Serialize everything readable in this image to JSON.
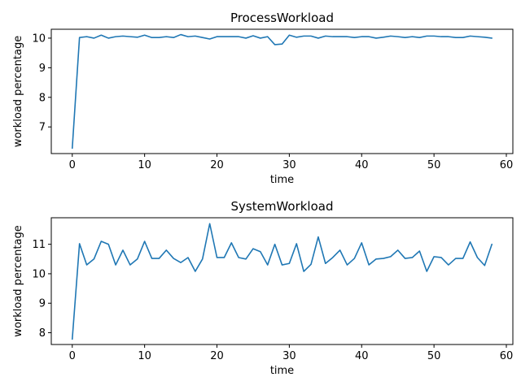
{
  "chart_data": [
    {
      "type": "line",
      "title": "ProcessWorkload",
      "xlabel": "time",
      "ylabel": "workload percentage",
      "xlim": [
        -2.9,
        60.9
      ],
      "ylim": [
        6.1,
        10.3
      ],
      "xticks": [
        0,
        10,
        20,
        30,
        40,
        50,
        60
      ],
      "yticks": [
        7,
        8,
        9,
        10
      ],
      "grid": false,
      "colors": {
        "line": "#1f77b4"
      },
      "series": [
        {
          "x": [
            0,
            1,
            2,
            3,
            4,
            5,
            6,
            7,
            8,
            9,
            10,
            11,
            12,
            13,
            14,
            15,
            16,
            17,
            18,
            19,
            20,
            21,
            22,
            23,
            24,
            25,
            26,
            27,
            28,
            29,
            30,
            31,
            32,
            33,
            34,
            35,
            36,
            37,
            38,
            39,
            40,
            41,
            42,
            43,
            44,
            45,
            46,
            47,
            48,
            49,
            50,
            51,
            52,
            53,
            54,
            55,
            56,
            57,
            58
          ],
          "values": [
            6.28,
            10.02,
            10.05,
            10.0,
            10.1,
            10.0,
            10.05,
            10.07,
            10.05,
            10.03,
            10.1,
            10.02,
            10.02,
            10.05,
            10.02,
            10.12,
            10.05,
            10.07,
            10.02,
            9.97,
            10.05,
            10.05,
            10.05,
            10.05,
            10.0,
            10.08,
            10.0,
            10.05,
            9.78,
            9.8,
            10.1,
            10.03,
            10.07,
            10.07,
            10.0,
            10.07,
            10.05,
            10.05,
            10.05,
            10.02,
            10.05,
            10.05,
            10.0,
            10.03,
            10.07,
            10.05,
            10.02,
            10.05,
            10.02,
            10.07,
            10.07,
            10.05,
            10.05,
            10.02,
            10.02,
            10.07,
            10.05,
            10.03,
            10.0
          ]
        }
      ]
    },
    {
      "type": "line",
      "title": "SystemWorkload",
      "xlabel": "time",
      "ylabel": "workload percentage",
      "xlim": [
        -2.9,
        60.9
      ],
      "ylim": [
        7.6,
        11.9
      ],
      "xticks": [
        0,
        10,
        20,
        30,
        40,
        50,
        60
      ],
      "yticks": [
        8,
        9,
        10,
        11
      ],
      "grid": false,
      "colors": {
        "line": "#1f77b4"
      },
      "series": [
        {
          "x": [
            0,
            1,
            2,
            3,
            4,
            5,
            6,
            7,
            8,
            9,
            10,
            11,
            12,
            13,
            14,
            15,
            16,
            17,
            18,
            19,
            20,
            21,
            22,
            23,
            24,
            25,
            26,
            27,
            28,
            29,
            30,
            31,
            32,
            33,
            34,
            35,
            36,
            37,
            38,
            39,
            40,
            41,
            42,
            43,
            44,
            45,
            46,
            47,
            48,
            49,
            50,
            51,
            52,
            53,
            54,
            55,
            56,
            57,
            58
          ],
          "values": [
            7.78,
            11.02,
            10.3,
            10.5,
            11.1,
            11.0,
            10.3,
            10.8,
            10.3,
            10.5,
            11.1,
            10.52,
            10.52,
            10.8,
            10.52,
            10.38,
            10.55,
            10.08,
            10.5,
            11.7,
            10.55,
            10.55,
            11.05,
            10.55,
            10.5,
            10.85,
            10.75,
            10.3,
            11.0,
            10.3,
            10.35,
            11.02,
            10.08,
            10.32,
            11.25,
            10.35,
            10.55,
            10.8,
            10.3,
            10.52,
            11.05,
            10.3,
            10.5,
            10.52,
            10.58,
            10.8,
            10.52,
            10.55,
            10.77,
            10.08,
            10.58,
            10.55,
            10.3,
            10.52,
            10.52,
            11.08,
            10.55,
            10.28,
            11.0
          ]
        }
      ]
    }
  ]
}
